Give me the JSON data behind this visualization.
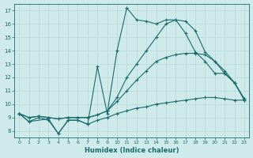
{
  "background_color": "#ceeaea",
  "grid_color": "#b8d8d8",
  "line_color": "#1a6b6b",
  "xlabel": "Humidex (Indice chaleur)",
  "xlim": [
    -0.5,
    23.5
  ],
  "ylim": [
    7.5,
    17.5
  ],
  "xticks": [
    0,
    1,
    2,
    3,
    4,
    5,
    6,
    7,
    8,
    9,
    10,
    11,
    12,
    13,
    14,
    15,
    16,
    17,
    18,
    19,
    20,
    21,
    22,
    23
  ],
  "yticks": [
    8,
    9,
    10,
    11,
    12,
    13,
    14,
    15,
    16,
    17
  ],
  "line1_x": [
    0,
    1,
    2,
    3,
    4,
    5,
    6,
    7,
    8,
    9,
    10,
    11,
    12,
    13,
    14,
    15,
    16,
    17,
    18,
    19,
    20,
    21,
    22,
    23
  ],
  "line1_y": [
    9.3,
    8.7,
    9.0,
    8.8,
    7.8,
    8.8,
    8.8,
    8.5,
    8.8,
    9.0,
    9.3,
    9.5,
    9.7,
    9.8,
    10.0,
    10.1,
    10.2,
    10.3,
    10.4,
    10.5,
    10.5,
    10.4,
    10.3,
    10.3
  ],
  "line2_x": [
    0,
    1,
    2,
    3,
    4,
    5,
    6,
    7,
    8,
    9,
    10,
    11,
    12,
    13,
    14,
    15,
    16,
    17,
    18,
    19,
    20,
    21,
    22,
    23
  ],
  "line2_y": [
    9.3,
    9.0,
    9.1,
    9.0,
    8.9,
    9.0,
    9.0,
    9.0,
    9.2,
    9.5,
    10.2,
    11.0,
    11.8,
    12.5,
    13.2,
    13.5,
    13.7,
    13.8,
    13.8,
    13.7,
    13.2,
    12.5,
    11.6,
    10.4
  ],
  "line3_x": [
    0,
    1,
    2,
    3,
    4,
    5,
    6,
    7,
    8,
    9,
    10,
    11,
    12,
    13,
    14,
    15,
    16,
    17,
    18,
    19,
    20,
    21,
    22,
    23
  ],
  "line3_y": [
    9.3,
    9.0,
    9.1,
    9.0,
    8.9,
    9.0,
    9.0,
    9.0,
    9.2,
    9.5,
    10.5,
    12.0,
    13.0,
    14.0,
    15.0,
    16.0,
    16.3,
    16.2,
    15.5,
    13.9,
    13.2,
    12.3,
    11.6,
    10.4
  ],
  "line4_x": [
    0,
    1,
    3,
    4,
    5,
    6,
    7,
    8,
    9,
    10,
    11,
    12,
    13,
    14,
    15,
    16,
    17,
    18,
    19,
    20,
    21,
    22,
    23
  ],
  "line4_y": [
    9.3,
    8.7,
    8.9,
    7.8,
    8.8,
    8.8,
    8.5,
    12.8,
    9.3,
    14.0,
    17.2,
    16.3,
    16.2,
    16.0,
    16.3,
    16.3,
    15.3,
    13.9,
    13.2,
    12.3,
    12.3,
    11.6,
    10.3
  ]
}
